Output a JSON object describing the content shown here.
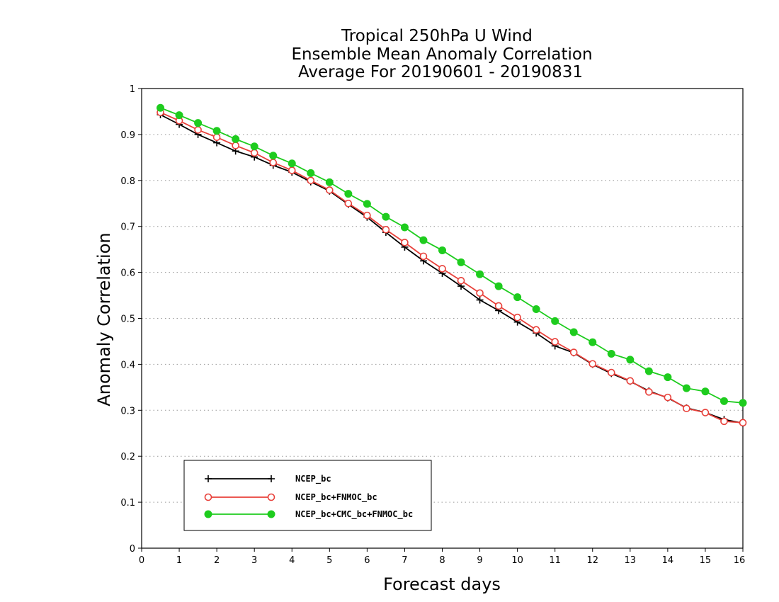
{
  "chart_data": {
    "type": "line",
    "title_lines": [
      "Tropical 250hPa U Wind",
      "Ensemble Mean Anomaly Correlation",
      "Average For 20190601 - 20190831"
    ],
    "xlabel": "Forecast days",
    "ylabel": "Anomaly Correlation",
    "xlim": [
      0,
      16
    ],
    "ylim": [
      0,
      1
    ],
    "x_ticks": [
      "0",
      "1",
      "2",
      "3",
      "4",
      "5",
      "6",
      "7",
      "8",
      "9",
      "10",
      "11",
      "12",
      "13",
      "14",
      "15",
      "16"
    ],
    "y_ticks": [
      "0",
      "0.1",
      "0.2",
      "0.3",
      "0.4",
      "0.5",
      "0.6",
      "0.7",
      "0.8",
      "0.9",
      "1"
    ],
    "grid": true,
    "legend_position": "bottom-left",
    "x": [
      0.5,
      1,
      1.5,
      2,
      2.5,
      3,
      3.5,
      4,
      4.5,
      5,
      5.5,
      6,
      6.5,
      7,
      7.5,
      8,
      8.5,
      9,
      9.5,
      10,
      10.5,
      11,
      11.5,
      12,
      12.5,
      13,
      13.5,
      14,
      14.5,
      15,
      15.5,
      16
    ],
    "series": [
      {
        "name": "NCEP_bc",
        "color": "#000000",
        "marker": "plus",
        "values": [
          0.943,
          0.922,
          0.9,
          0.882,
          0.864,
          0.851,
          0.833,
          0.818,
          0.797,
          0.777,
          0.748,
          0.72,
          0.687,
          0.655,
          0.625,
          0.598,
          0.57,
          0.54,
          0.517,
          0.492,
          0.468,
          0.44,
          0.425,
          0.4,
          0.38,
          0.363,
          0.342,
          0.327,
          0.305,
          0.295,
          0.28,
          0.272
        ]
      },
      {
        "name": "NCEP_bc+FNMOC_bc",
        "color": "#e8403a",
        "marker": "open-circle",
        "values": [
          0.948,
          0.93,
          0.91,
          0.894,
          0.876,
          0.86,
          0.839,
          0.822,
          0.8,
          0.779,
          0.75,
          0.724,
          0.693,
          0.665,
          0.635,
          0.608,
          0.582,
          0.555,
          0.527,
          0.502,
          0.475,
          0.449,
          0.426,
          0.401,
          0.382,
          0.364,
          0.34,
          0.328,
          0.304,
          0.295,
          0.276,
          0.273
        ]
      },
      {
        "name": "NCEP_bc+CMC_bc+FNMOC_bc",
        "color": "#1ecc1e",
        "marker": "filled-circle",
        "values": [
          0.958,
          0.942,
          0.925,
          0.908,
          0.89,
          0.874,
          0.854,
          0.837,
          0.816,
          0.796,
          0.771,
          0.749,
          0.721,
          0.698,
          0.67,
          0.648,
          0.622,
          0.596,
          0.57,
          0.546,
          0.52,
          0.494,
          0.47,
          0.448,
          0.423,
          0.41,
          0.385,
          0.372,
          0.348,
          0.341,
          0.32,
          0.316
        ]
      }
    ]
  }
}
